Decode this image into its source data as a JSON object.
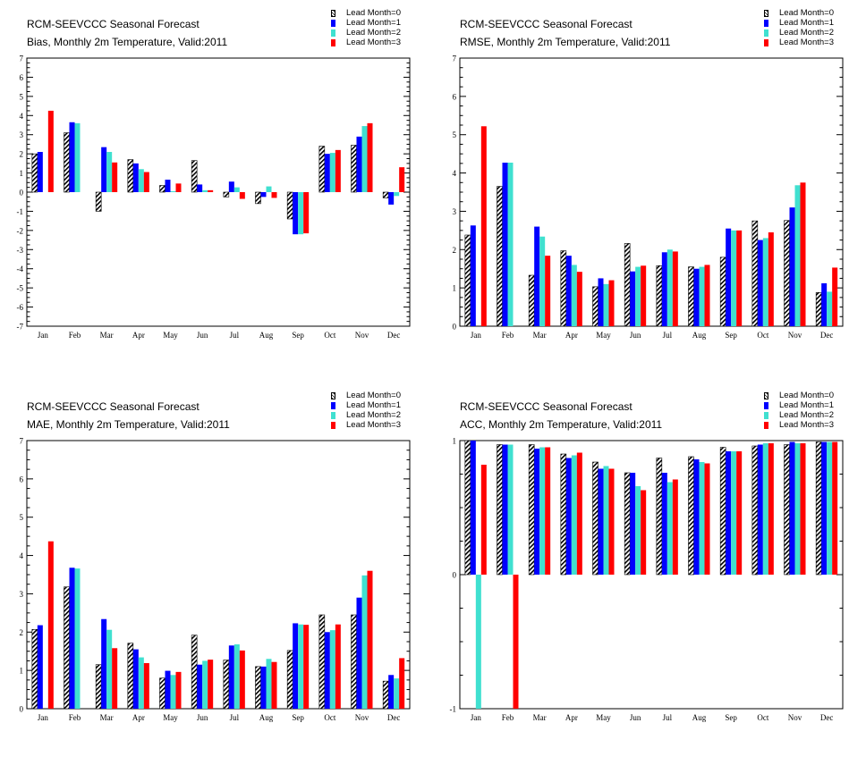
{
  "colors": {
    "lead0": "hatched-black-white",
    "lead1": "#0000ff",
    "lead2": "#40e0d0",
    "lead3": "#ff0000"
  },
  "legend": [
    "Lead Month=0",
    "Lead Month=1",
    "Lead Month=2",
    "Lead Month=3"
  ],
  "chart_data": [
    {
      "type": "bar",
      "title": "RCM-SEEVCCC Seasonal Forecast",
      "subtitle": "Bias, Monthly 2m Temperature, Valid:2011",
      "categories": [
        "Jan",
        "Feb",
        "Mar",
        "Apr",
        "May",
        "Jun",
        "Jul",
        "Aug",
        "Sep",
        "Oct",
        "Nov",
        "Dec"
      ],
      "ylim": [
        -7,
        7
      ],
      "yticks": [
        "7",
        "6",
        "5",
        "4",
        "3",
        "2",
        "1",
        "0",
        "-1",
        "-2",
        "-3",
        "-4",
        "-5",
        "-6",
        "-7"
      ],
      "series": [
        {
          "name": "Lead Month=0",
          "values": [
            2.0,
            3.1,
            -1.0,
            1.7,
            0.35,
            1.65,
            -0.25,
            -0.6,
            -1.4,
            2.4,
            2.45,
            -0.3
          ]
        },
        {
          "name": "Lead Month=1",
          "values": [
            2.1,
            3.65,
            2.35,
            1.5,
            0.65,
            0.4,
            0.55,
            -0.25,
            -2.2,
            2.0,
            2.9,
            -0.65
          ]
        },
        {
          "name": "Lead Month=2",
          "values": [
            null,
            3.6,
            2.1,
            1.2,
            0.05,
            0.1,
            0.25,
            0.3,
            -2.2,
            2.05,
            3.45,
            -0.2
          ]
        },
        {
          "name": "Lead Month=3",
          "values": [
            4.25,
            null,
            1.55,
            1.05,
            0.45,
            0.1,
            -0.35,
            -0.3,
            -2.15,
            2.2,
            3.6,
            1.3
          ]
        }
      ]
    },
    {
      "type": "bar",
      "title": "RCM-SEEVCCC Seasonal Forecast",
      "subtitle": "RMSE, Monthly 2m Temperature, Valid:2011",
      "categories": [
        "Jan",
        "Feb",
        "Mar",
        "Apr",
        "May",
        "Jun",
        "Jul",
        "Aug",
        "Sep",
        "Oct",
        "Nov",
        "Dec"
      ],
      "ylim": [
        0,
        7
      ],
      "yticks": [
        "7",
        "6",
        "5",
        "4",
        "3",
        "2",
        "1",
        "0"
      ],
      "series": [
        {
          "name": "Lead Month=0",
          "values": [
            2.38,
            3.65,
            1.33,
            1.97,
            1.03,
            2.16,
            1.58,
            1.55,
            1.8,
            2.75,
            2.76,
            0.88
          ]
        },
        {
          "name": "Lead Month=1",
          "values": [
            2.63,
            4.27,
            2.6,
            1.84,
            1.25,
            1.43,
            1.93,
            1.5,
            2.55,
            2.25,
            3.1,
            1.12
          ]
        },
        {
          "name": "Lead Month=2",
          "values": [
            null,
            4.27,
            2.34,
            1.6,
            1.1,
            1.55,
            2.0,
            1.55,
            2.5,
            2.3,
            3.68,
            0.9
          ]
        },
        {
          "name": "Lead Month=3",
          "values": [
            5.22,
            null,
            1.84,
            1.42,
            1.2,
            1.58,
            1.95,
            1.6,
            2.5,
            2.45,
            3.75,
            1.53
          ]
        }
      ]
    },
    {
      "type": "bar",
      "title": "RCM-SEEVCCC Seasonal Forecast",
      "subtitle": "MAE, Monthly 2m Temperature, Valid:2011",
      "categories": [
        "Jan",
        "Feb",
        "Mar",
        "Apr",
        "May",
        "Jun",
        "Jul",
        "Aug",
        "Sep",
        "Oct",
        "Nov",
        "Dec"
      ],
      "ylim": [
        0,
        7
      ],
      "yticks": [
        "7",
        "6",
        "5",
        "4",
        "3",
        "2",
        "1",
        "0"
      ],
      "series": [
        {
          "name": "Lead Month=0",
          "values": [
            2.07,
            3.18,
            1.15,
            1.71,
            0.8,
            1.92,
            1.27,
            1.1,
            1.52,
            2.45,
            2.45,
            0.72
          ]
        },
        {
          "name": "Lead Month=1",
          "values": [
            2.18,
            3.68,
            2.34,
            1.55,
            0.99,
            1.15,
            1.65,
            1.1,
            2.23,
            2.0,
            2.9,
            0.88
          ]
        },
        {
          "name": "Lead Month=2",
          "values": [
            null,
            3.66,
            2.06,
            1.34,
            0.88,
            1.25,
            1.68,
            1.3,
            2.2,
            2.05,
            3.48,
            0.79
          ]
        },
        {
          "name": "Lead Month=3",
          "values": [
            4.37,
            null,
            1.58,
            1.19,
            0.96,
            1.28,
            1.52,
            1.22,
            2.19,
            2.2,
            3.6,
            1.32
          ]
        }
      ]
    },
    {
      "type": "bar",
      "title": "RCM-SEEVCCC Seasonal Forecast",
      "subtitle": "ACC, Monthly 2m Temperature, Valid:2011",
      "categories": [
        "Jan",
        "Feb",
        "Mar",
        "Apr",
        "May",
        "Jun",
        "Jul",
        "Aug",
        "Sep",
        "Oct",
        "Nov",
        "Dec"
      ],
      "ylim": [
        -1,
        1
      ],
      "yticks": [
        "1",
        "0",
        "-1"
      ],
      "series": [
        {
          "name": "Lead Month=0",
          "values": [
            1.0,
            0.97,
            0.97,
            0.9,
            0.84,
            0.76,
            0.87,
            0.88,
            0.95,
            0.96,
            0.97,
            0.99
          ]
        },
        {
          "name": "Lead Month=1",
          "values": [
            1.0,
            0.97,
            0.94,
            0.87,
            0.79,
            0.76,
            0.76,
            0.86,
            0.92,
            0.97,
            0.99,
            0.99
          ]
        },
        {
          "name": "Lead Month=2",
          "values": [
            -1.0,
            0.97,
            0.95,
            0.89,
            0.81,
            0.66,
            0.69,
            0.84,
            0.92,
            0.98,
            0.98,
            0.99
          ]
        },
        {
          "name": "Lead Month=3",
          "values": [
            0.82,
            -1.0,
            0.95,
            0.91,
            0.79,
            0.63,
            0.71,
            0.83,
            0.92,
            0.98,
            0.98,
            0.99
          ]
        }
      ]
    }
  ]
}
